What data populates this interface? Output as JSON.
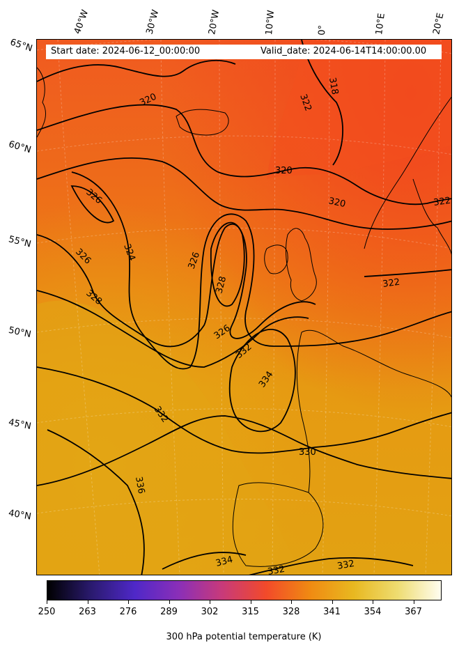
{
  "header": {
    "start_date": "Start date: 2024-06-12_00:00:00",
    "valid_date": "Valid_date: 2024-06-14T14:00:00.00"
  },
  "longitude_labels": [
    "40°W",
    "30°W",
    "20°W",
    "10°W",
    "0°",
    "10°E",
    "20°E"
  ],
  "latitude_labels": [
    "65°N",
    "60°N",
    "55°N",
    "50°N",
    "45°N",
    "40°N"
  ],
  "contour_labels": [
    "318",
    "320",
    "322",
    "324",
    "326",
    "328",
    "330",
    "332",
    "334",
    "336"
  ],
  "colorbar": {
    "title": "300 hPa potential temperature (K)",
    "ticks": [
      "250",
      "263",
      "276",
      "289",
      "302",
      "315",
      "328",
      "341",
      "354",
      "367"
    ],
    "min": 250,
    "max": 376,
    "colors": [
      "#000000",
      "#2a1a6e",
      "#4f28c8",
      "#8a2fb8",
      "#c83a7a",
      "#f24a2a",
      "#f08a12",
      "#e8b820",
      "#eedc70",
      "#fffdf0"
    ]
  },
  "colors": {
    "warm_region": "#f05822",
    "mid_region": "#ec7a14",
    "cool_region": "#e4a012",
    "contour": "#000000"
  }
}
